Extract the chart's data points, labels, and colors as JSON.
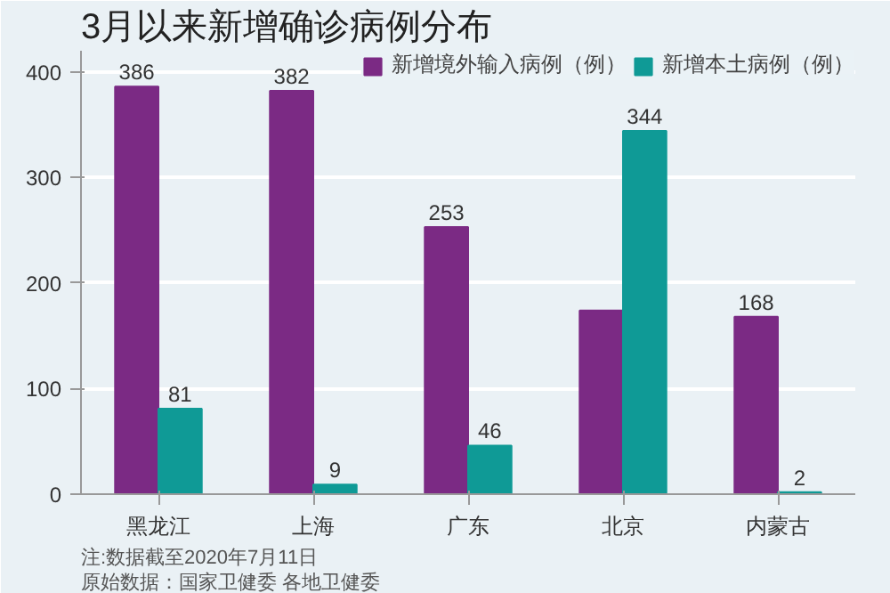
{
  "chart_data": {
    "type": "bar",
    "title": "3月以来新增确诊病例分布",
    "categories": [
      "黑龙江",
      "上海",
      "广东",
      "北京",
      "内蒙古"
    ],
    "series": [
      {
        "name": "新增境外输入病例（例）",
        "color": "#7b2a84",
        "values": [
          386,
          382,
          253,
          174,
          168
        ],
        "value_labels": [
          "386",
          "382",
          "253",
          null,
          "168"
        ]
      },
      {
        "name": "新增本土病例（例）",
        "color": "#0f9a96",
        "values": [
          81,
          9,
          46,
          344,
          2
        ],
        "value_labels": [
          "81",
          "9",
          "46",
          "344",
          "2"
        ]
      }
    ],
    "ylim": [
      0,
      420
    ],
    "yticks": [
      0,
      100,
      200,
      300,
      400
    ],
    "grid": "y",
    "legend": "top right",
    "annotations": [
      "注:数据截至2020年7月11日",
      "原始数据：国家卫健委 各地卫健委"
    ]
  }
}
